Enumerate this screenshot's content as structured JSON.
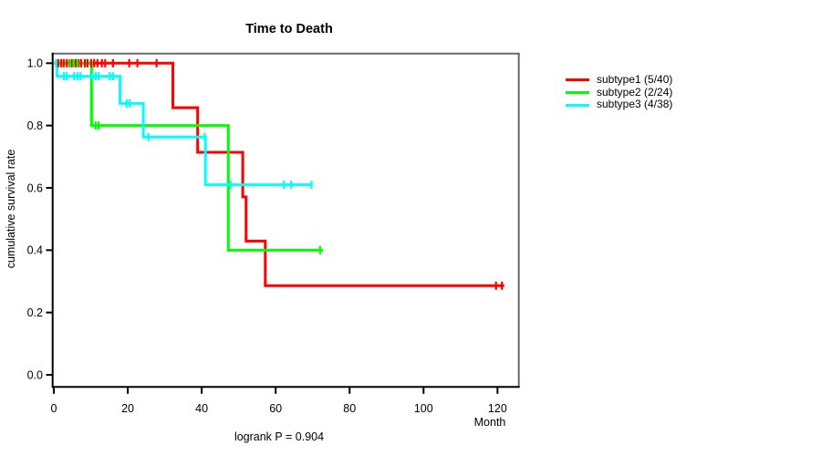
{
  "chart_data": {
    "type": "line",
    "subtype": "kaplan-meier-step",
    "title": "Time to Death",
    "xlabel": "Month",
    "ylabel": "cumulative survival rate",
    "annotation": "logrank P = 0.904",
    "xlim": [
      0,
      126
    ],
    "ylim": [
      0.0,
      1.0
    ],
    "x_ticks": [
      0,
      20,
      40,
      60,
      80,
      100,
      120
    ],
    "y_ticks": [
      0.0,
      0.2,
      0.4,
      0.6,
      0.8,
      1.0
    ],
    "grid": false,
    "legend_position": "right-outside",
    "background_color": "#ffffff",
    "frame_color": "#696969",
    "axis_color": "#000000",
    "series": [
      {
        "name": "subtype1",
        "label": "subtype1 (5/40)",
        "color": "#ff0000",
        "start_value": 1.0,
        "events": [
          {
            "month": 32.2,
            "survival": 0.857
          },
          {
            "month": 38.9,
            "survival": 0.714
          },
          {
            "month": 51.1,
            "survival": 0.571
          },
          {
            "month": 52.0,
            "survival": 0.429
          },
          {
            "month": 57.2,
            "survival": 0.286
          }
        ],
        "end_month": 121.8,
        "censors": [
          {
            "month": 1.2,
            "survival": 1.0
          },
          {
            "month": 2.0,
            "survival": 1.0
          },
          {
            "month": 2.7,
            "survival": 1.0
          },
          {
            "month": 3.5,
            "survival": 1.0
          },
          {
            "month": 4.2,
            "survival": 1.0
          },
          {
            "month": 4.9,
            "survival": 1.0
          },
          {
            "month": 5.9,
            "survival": 1.0
          },
          {
            "month": 6.7,
            "survival": 1.0
          },
          {
            "month": 7.4,
            "survival": 1.0
          },
          {
            "month": 8.4,
            "survival": 1.0
          },
          {
            "month": 9.1,
            "survival": 1.0
          },
          {
            "month": 10.1,
            "survival": 1.0
          },
          {
            "month": 10.9,
            "survival": 1.0
          },
          {
            "month": 11.8,
            "survival": 1.0
          },
          {
            "month": 13.0,
            "survival": 1.0
          },
          {
            "month": 13.9,
            "survival": 1.0
          },
          {
            "month": 16.0,
            "survival": 1.0
          },
          {
            "month": 20.4,
            "survival": 1.0
          },
          {
            "month": 22.6,
            "survival": 1.0
          },
          {
            "month": 27.8,
            "survival": 1.0
          },
          {
            "month": 119.6,
            "survival": 0.286
          },
          {
            "month": 121.2,
            "survival": 0.286
          }
        ]
      },
      {
        "name": "subtype2",
        "label": "subtype2 (2/24)",
        "color": "#00ff00",
        "start_value": 1.0,
        "events": [
          {
            "month": 10.2,
            "survival": 0.8
          },
          {
            "month": 47.2,
            "survival": 0.4
          }
        ],
        "end_month": 72.8,
        "censors": [
          {
            "month": 4.3,
            "survival": 1.0
          },
          {
            "month": 5.3,
            "survival": 1.0
          },
          {
            "month": 6.4,
            "survival": 1.0
          },
          {
            "month": 11.3,
            "survival": 0.8
          },
          {
            "month": 12.1,
            "survival": 0.8
          },
          {
            "month": 72.0,
            "survival": 0.4
          }
        ]
      },
      {
        "name": "subtype3",
        "label": "subtype3 (4/38)",
        "color": "#00ffff",
        "start_value": 1.0,
        "events": [
          {
            "month": 0.9,
            "survival": 0.958
          },
          {
            "month": 17.9,
            "survival": 0.871
          },
          {
            "month": 24.2,
            "survival": 0.763
          },
          {
            "month": 41.0,
            "survival": 0.61
          }
        ],
        "end_month": 70.0,
        "censors": [
          {
            "month": 0.6,
            "survival": 1.0
          },
          {
            "month": 2.7,
            "survival": 0.958
          },
          {
            "month": 3.5,
            "survival": 0.958
          },
          {
            "month": 5.5,
            "survival": 0.958
          },
          {
            "month": 6.4,
            "survival": 0.958
          },
          {
            "month": 7.2,
            "survival": 0.958
          },
          {
            "month": 10.5,
            "survival": 0.958
          },
          {
            "month": 11.3,
            "survival": 0.958
          },
          {
            "month": 12.1,
            "survival": 0.958
          },
          {
            "month": 15.1,
            "survival": 0.958
          },
          {
            "month": 16.0,
            "survival": 0.958
          },
          {
            "month": 19.7,
            "survival": 0.871
          },
          {
            "month": 20.5,
            "survival": 0.871
          },
          {
            "month": 25.6,
            "survival": 0.763
          },
          {
            "month": 40.8,
            "survival": 0.763
          },
          {
            "month": 47.8,
            "survival": 0.61
          },
          {
            "month": 62.2,
            "survival": 0.61
          },
          {
            "month": 64.2,
            "survival": 0.61
          },
          {
            "month": 69.7,
            "survival": 0.61
          }
        ]
      }
    ]
  }
}
